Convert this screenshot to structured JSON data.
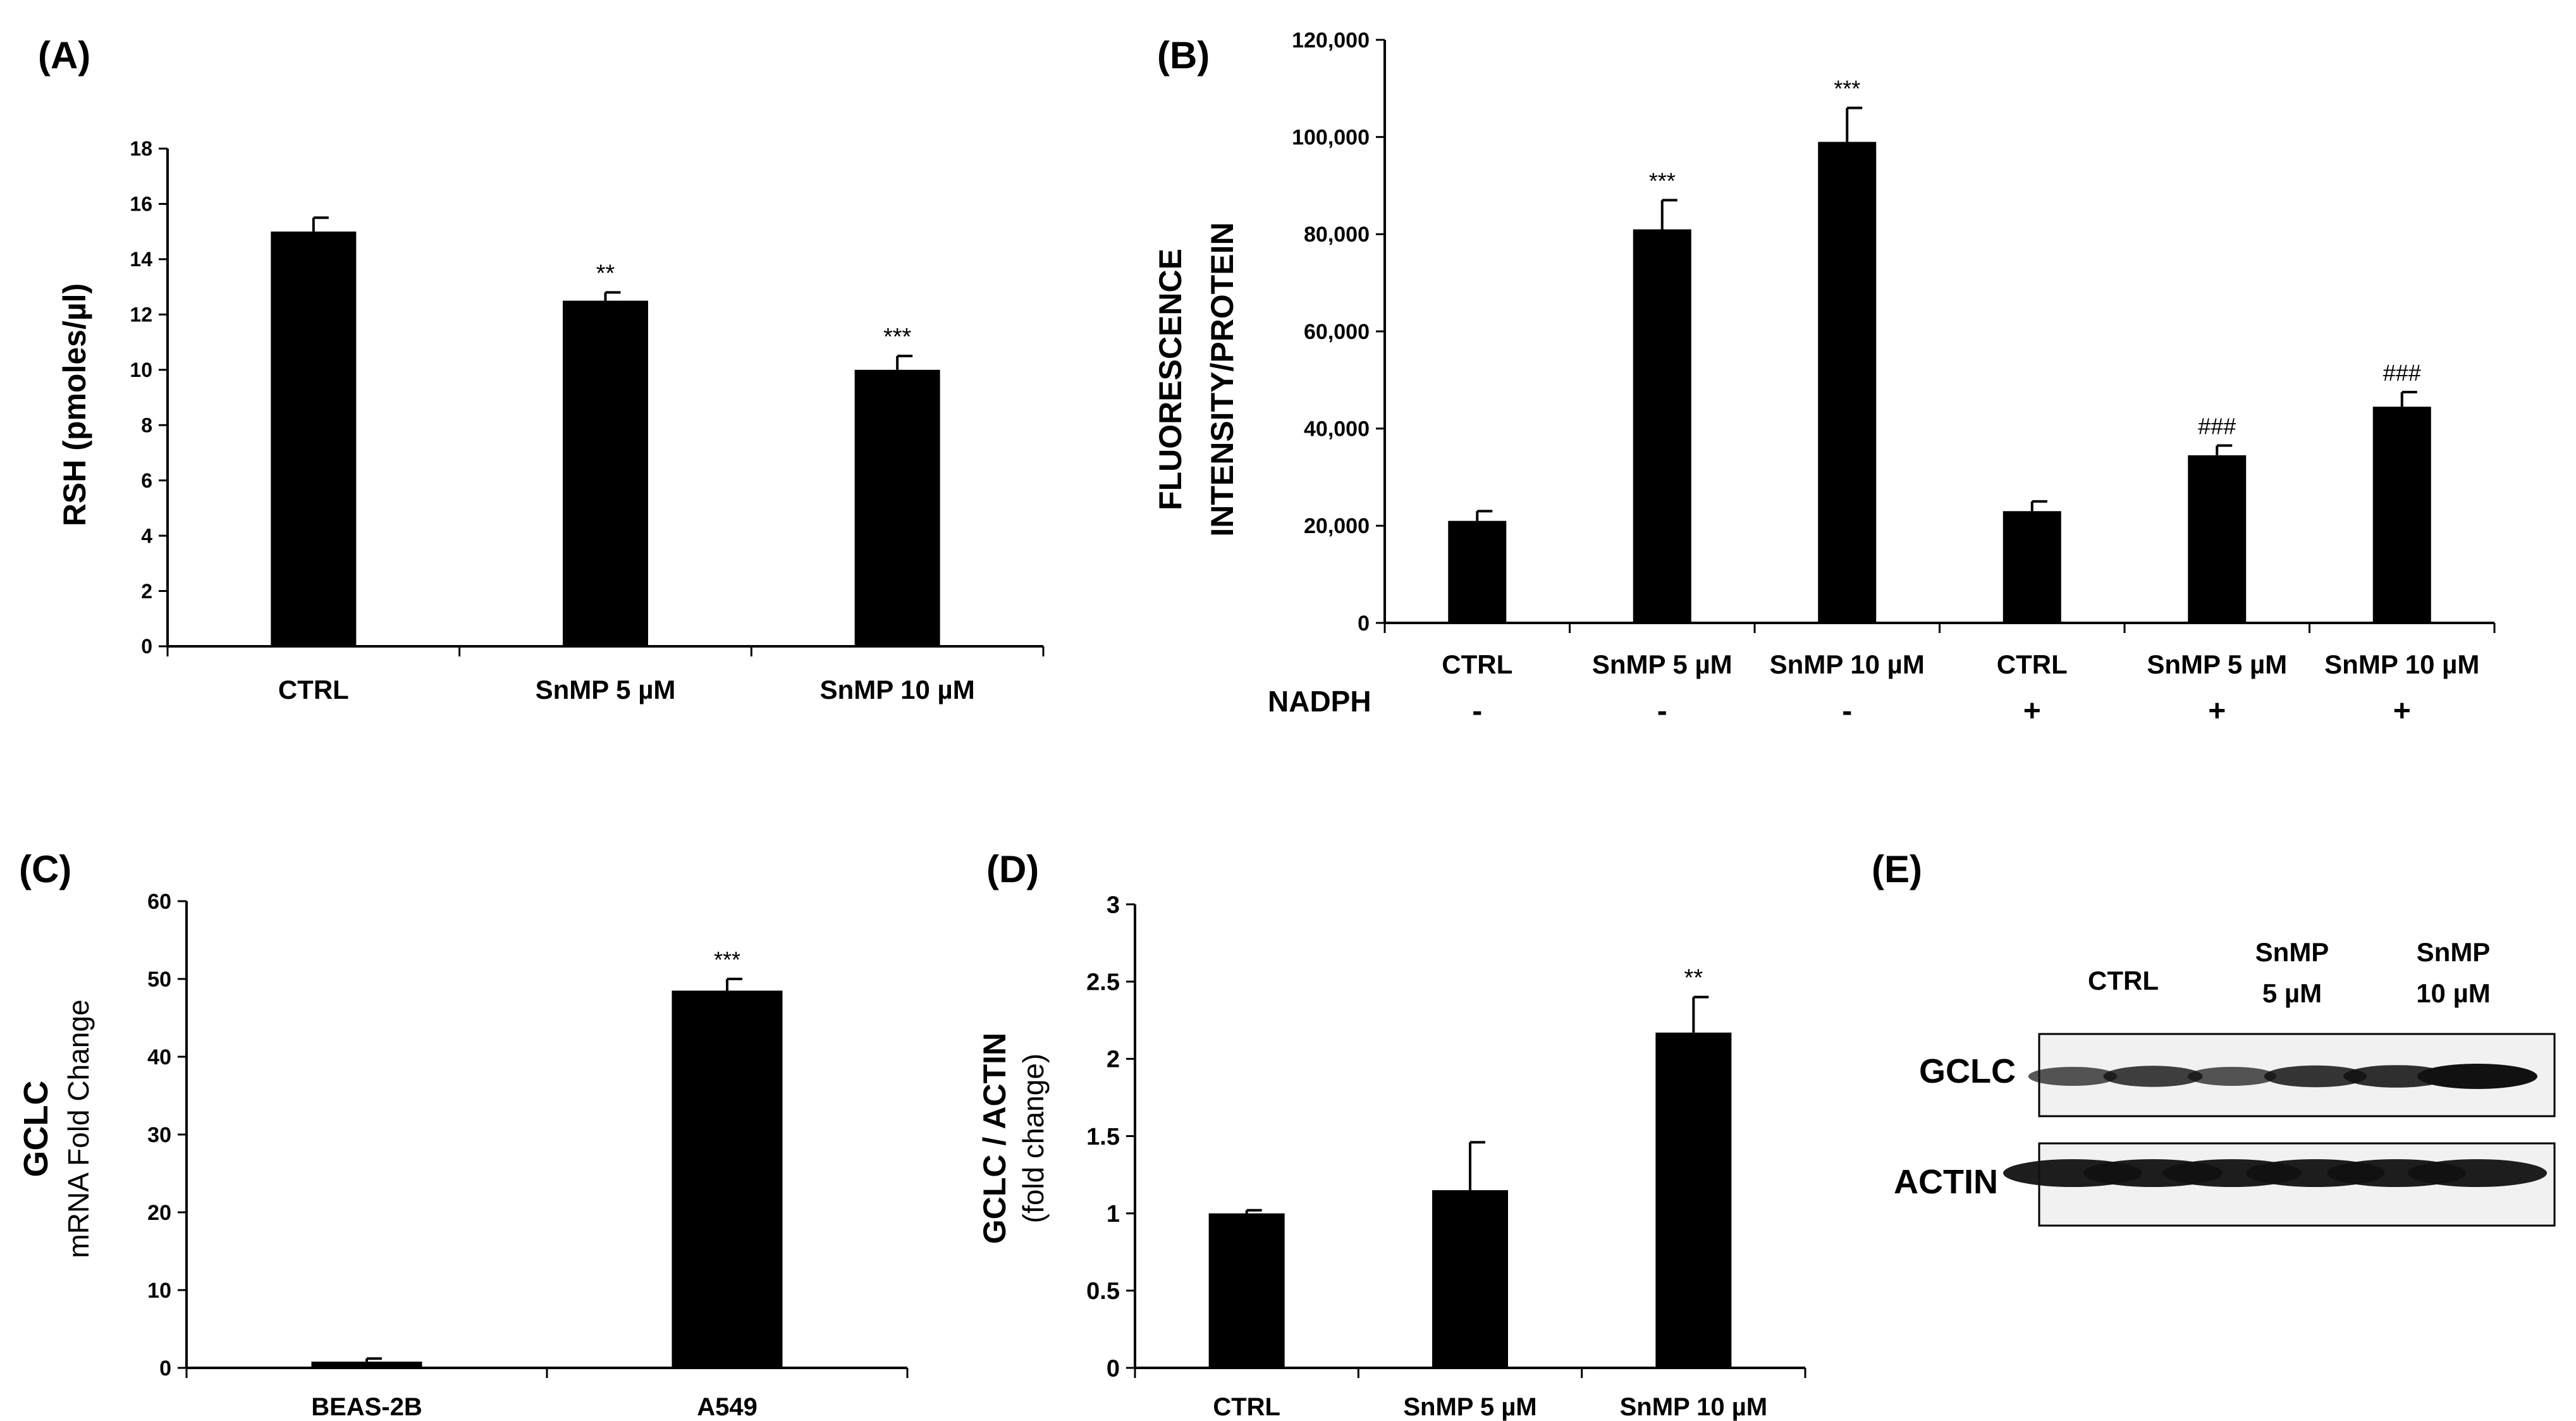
{
  "colors": {
    "bar": "#000000",
    "axis": "#000000",
    "blot_bg": "#f1f1f1",
    "band": "#111111"
  },
  "chart_data": [
    {
      "panel": "(A)",
      "type": "bar",
      "categories": [
        "CTRL",
        "SnMP 5 µM",
        "SnMP 10 µM"
      ],
      "values": [
        15.0,
        12.5,
        10.0
      ],
      "errors": [
        0.5,
        0.3,
        0.5
      ],
      "significance": [
        "",
        "**",
        "***"
      ],
      "ylabel": "RSH (pmoles/µl)",
      "ylim": [
        0,
        18
      ],
      "yticks": [
        "0",
        "2",
        "4",
        "6",
        "8",
        "10",
        "12",
        "14",
        "16",
        "18"
      ],
      "xlabel": ""
    },
    {
      "panel": "(B)",
      "type": "bar",
      "categories": [
        "CTRL",
        "SnMP 5 µM",
        "SnMP 10 µM",
        "CTRL",
        "SnMP 5 µM",
        "SnMP 10 µM"
      ],
      "values": [
        21000,
        81000,
        99000,
        23000,
        34500,
        44500
      ],
      "errors": [
        2000,
        6000,
        7000,
        2000,
        2000,
        3000
      ],
      "significance": [
        "",
        "***",
        "***",
        "",
        "###",
        "###"
      ],
      "ylabel_lines": [
        "FLUORESCENCE",
        "INTENSITY/PROTEIN"
      ],
      "ylim": [
        0,
        120000
      ],
      "yticks": [
        "0",
        "20,000",
        "40,000",
        "60,000",
        "80,000",
        "100,000",
        "120,000"
      ],
      "extra_row_label": "NADPH",
      "extra_row": [
        "-",
        "-",
        "-",
        "+",
        "+",
        "+"
      ]
    },
    {
      "panel": "(C)",
      "type": "bar",
      "categories": [
        "BEAS-2B",
        "A549"
      ],
      "values": [
        0.8,
        48.5
      ],
      "errors": [
        0.4,
        1.5
      ],
      "significance": [
        "",
        "***"
      ],
      "ylabel_lines": [
        "GCLC",
        "mRNA Fold Change"
      ],
      "ylim": [
        0,
        60
      ],
      "yticks": [
        "0",
        "10",
        "20",
        "30",
        "40",
        "50",
        "60"
      ]
    },
    {
      "panel": "(D)",
      "type": "bar",
      "categories": [
        "CTRL",
        "SnMP 5 µM",
        "SnMP 10 µM"
      ],
      "values": [
        1.0,
        1.15,
        2.17
      ],
      "errors": [
        0.02,
        0.31,
        0.23
      ],
      "significance": [
        "",
        "",
        "**"
      ],
      "ylabel_lines": [
        "GCLC / ACTIN",
        "(fold change)"
      ],
      "ylim": [
        0,
        3
      ],
      "yticks": [
        "0",
        "0.5",
        "1",
        "1.5",
        "2",
        "2.5",
        "3"
      ]
    }
  ],
  "western_blot": {
    "panel": "(E)",
    "groups": [
      {
        "line1": "CTRL",
        "line2": ""
      },
      {
        "line1": "SnMP",
        "line2": "5 µM"
      },
      {
        "line1": "SnMP",
        "line2": "10 µM"
      }
    ],
    "rows": [
      {
        "label": "GCLC",
        "intensities": [
          0.55,
          0.7,
          0.55,
          0.75,
          0.8,
          1.0
        ]
      },
      {
        "label": "ACTIN",
        "intensities": [
          1.0,
          1.0,
          1.0,
          1.0,
          1.0,
          1.0
        ]
      }
    ]
  }
}
